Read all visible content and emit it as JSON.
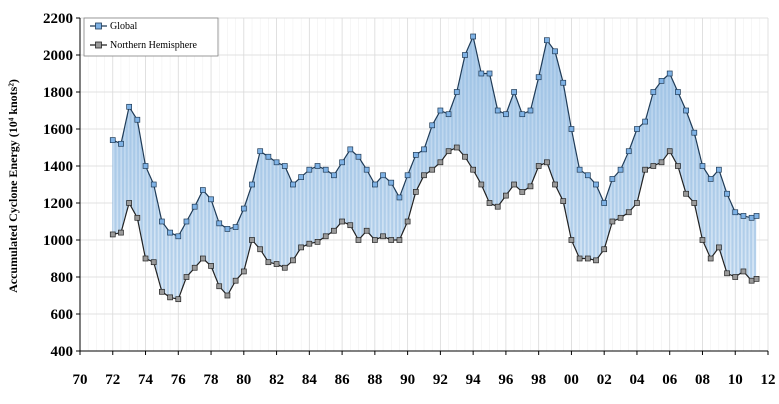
{
  "chart_data": {
    "type": "line",
    "title": "",
    "xlabel": "",
    "ylabel": "Accumulated Cyclone Energy (10⁴ knots²)",
    "xlim": [
      1970,
      2012
    ],
    "ylim": [
      400,
      2200
    ],
    "x_ticks": [
      "70",
      "72",
      "74",
      "76",
      "78",
      "80",
      "82",
      "84",
      "86",
      "88",
      "90",
      "92",
      "94",
      "96",
      "98",
      "00",
      "02",
      "04",
      "06",
      "08",
      "10",
      "12"
    ],
    "y_ticks": [
      "400",
      "600",
      "800",
      "1000",
      "1200",
      "1400",
      "1600",
      "1800",
      "2000",
      "2200"
    ],
    "grid": true,
    "legend_position": "top-left",
    "colors": {
      "global": "#5b9bd5",
      "northern": "#7f7f7f",
      "fill_top": "#c5dcf2",
      "fill_bottom": "#ffffff"
    },
    "x": [
      1972.0,
      1972.5,
      1973.0,
      1973.5,
      1974.0,
      1974.5,
      1975.0,
      1975.5,
      1976.0,
      1976.5,
      1977.0,
      1977.5,
      1978.0,
      1978.5,
      1979.0,
      1979.5,
      1980.0,
      1980.5,
      1981.0,
      1981.5,
      1982.0,
      1982.5,
      1983.0,
      1983.5,
      1984.0,
      1984.5,
      1985.0,
      1985.5,
      1986.0,
      1986.5,
      1987.0,
      1987.5,
      1988.0,
      1988.5,
      1989.0,
      1989.5,
      1990.0,
      1990.5,
      1991.0,
      1991.5,
      1992.0,
      1992.5,
      1993.0,
      1993.5,
      1994.0,
      1994.5,
      1995.0,
      1995.5,
      1996.0,
      1996.5,
      1997.0,
      1997.5,
      1998.0,
      1998.5,
      1999.0,
      1999.5,
      2000.0,
      2000.5,
      2001.0,
      2001.5,
      2002.0,
      2002.5,
      2003.0,
      2003.5,
      2004.0,
      2004.5,
      2005.0,
      2005.5,
      2006.0,
      2006.5,
      2007.0,
      2007.5,
      2008.0,
      2008.5,
      2009.0,
      2009.5,
      2010.0,
      2010.5,
      2011.0,
      2011.3
    ],
    "series": [
      {
        "name": "Global",
        "values": [
          1540,
          1520,
          1720,
          1650,
          1400,
          1300,
          1100,
          1040,
          1020,
          1100,
          1180,
          1270,
          1220,
          1090,
          1060,
          1070,
          1170,
          1300,
          1480,
          1450,
          1420,
          1400,
          1300,
          1340,
          1380,
          1400,
          1380,
          1350,
          1420,
          1490,
          1450,
          1380,
          1300,
          1350,
          1310,
          1230,
          1350,
          1460,
          1490,
          1620,
          1700,
          1680,
          1800,
          2000,
          2100,
          1900,
          1900,
          1700,
          1680,
          1800,
          1680,
          1700,
          1880,
          2080,
          2020,
          1850,
          1600,
          1380,
          1350,
          1300,
          1200,
          1330,
          1380,
          1480,
          1600,
          1640,
          1800,
          1860,
          1900,
          1800,
          1700,
          1580,
          1400,
          1330,
          1380,
          1250,
          1150,
          1130,
          1120,
          1130
        ]
      },
      {
        "name": "Northern Hemisphere",
        "values": [
          1030,
          1040,
          1200,
          1120,
          900,
          880,
          720,
          690,
          680,
          800,
          850,
          900,
          860,
          750,
          700,
          780,
          830,
          1000,
          950,
          880,
          870,
          850,
          890,
          960,
          980,
          990,
          1020,
          1050,
          1100,
          1080,
          1000,
          1050,
          1000,
          1020,
          1000,
          1000,
          1100,
          1260,
          1350,
          1380,
          1420,
          1480,
          1500,
          1450,
          1380,
          1300,
          1200,
          1180,
          1240,
          1300,
          1260,
          1290,
          1400,
          1420,
          1300,
          1210,
          1000,
          900,
          900,
          890,
          950,
          1100,
          1120,
          1150,
          1200,
          1380,
          1400,
          1420,
          1480,
          1400,
          1250,
          1200,
          1000,
          900,
          960,
          820,
          800,
          830,
          780,
          790
        ]
      }
    ]
  }
}
